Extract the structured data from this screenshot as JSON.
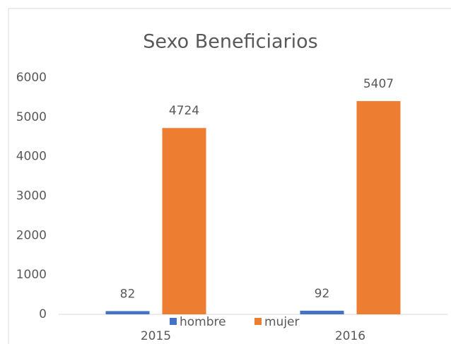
{
  "chart_data": {
    "type": "bar",
    "title": "Sexo Beneficiarios",
    "categories": [
      "2015",
      "2016"
    ],
    "series": [
      {
        "name": "hombre",
        "color": "#4472c4",
        "values": [
          82,
          92
        ]
      },
      {
        "name": "mujer",
        "color": "#ed7d31",
        "values": [
          4724,
          5407
        ]
      }
    ],
    "ylim": [
      0,
      6000
    ],
    "yticks": [
      0,
      1000,
      2000,
      3000,
      4000,
      5000,
      6000
    ],
    "grid": false,
    "legend": "bottom"
  }
}
